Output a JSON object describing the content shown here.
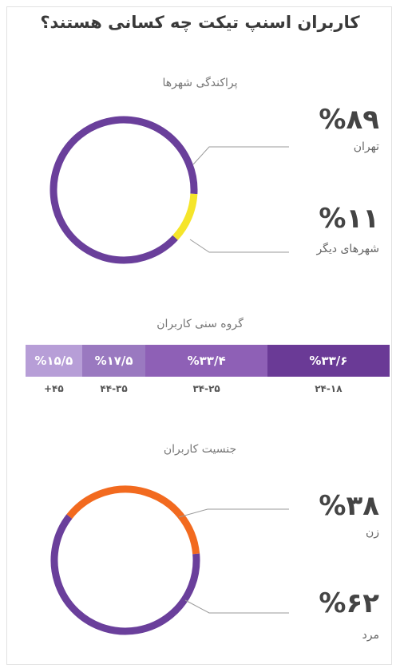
{
  "title": "کاربران اسنپ تیکت چه کسانی هستند؟",
  "chart_data": [
    {
      "type": "pie",
      "title": "پراکندگی شهرها",
      "slices": [
        {
          "label": "تهران",
          "value": 89,
          "display": "%۸۹",
          "color": "#6a3f9b"
        },
        {
          "label": "شهرهای دیگر",
          "value": 11,
          "display": "%۱۱",
          "color": "#f5e52a"
        }
      ]
    },
    {
      "type": "bar",
      "title": "گروه سنی کاربران",
      "categories": [
        "۲۴-۱۸",
        "۳۴-۲۵",
        "۴۴-۳۵",
        "+۴۵"
      ],
      "values": [
        33.6,
        33.4,
        17.5,
        15.5
      ],
      "display": [
        "%۳۳/۶",
        "%۳۳/۴",
        "%۱۷/۵",
        "%۱۵/۵"
      ],
      "colors": [
        "#6a3a96",
        "#8e60b6",
        "#9a79c0",
        "#b79ed7"
      ]
    },
    {
      "type": "pie",
      "title": "جنسیت کاربران",
      "slices": [
        {
          "label": "زن",
          "value": 38,
          "display": "%۳۸",
          "color": "#f26a1f"
        },
        {
          "label": "مرد",
          "value": 62,
          "display": "%۶۲",
          "color": "#6a3f9b"
        }
      ]
    }
  ]
}
